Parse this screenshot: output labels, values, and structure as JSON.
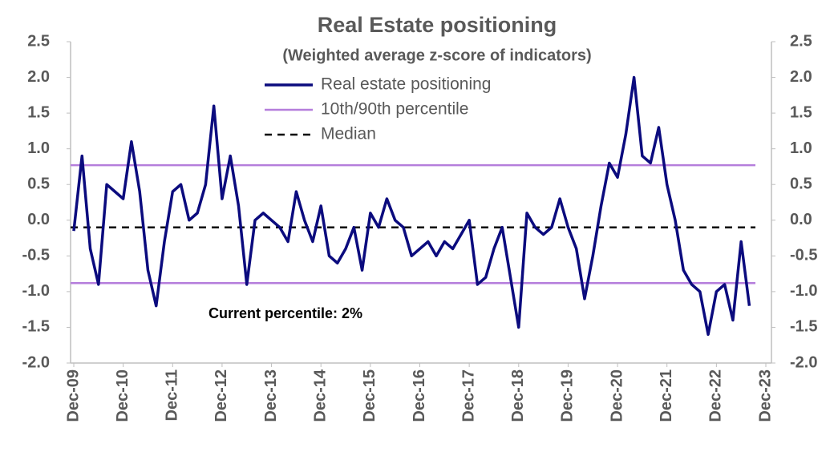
{
  "chart_data": {
    "type": "line",
    "title": "Real Estate positioning",
    "subtitle": "(Weighted average z-score of indicators)",
    "annotation": "Current percentile: 2%",
    "x": [
      "Dec-09",
      "Feb-10",
      "Apr-10",
      "Jun-10",
      "Aug-10",
      "Oct-10",
      "Dec-10",
      "Feb-11",
      "Apr-11",
      "Jun-11",
      "Aug-11",
      "Oct-11",
      "Dec-11",
      "Feb-12",
      "Apr-12",
      "Jun-12",
      "Aug-12",
      "Oct-12",
      "Dec-12",
      "Feb-13",
      "Apr-13",
      "Jun-13",
      "Aug-13",
      "Oct-13",
      "Dec-13",
      "Feb-14",
      "Apr-14",
      "Jun-14",
      "Aug-14",
      "Oct-14",
      "Dec-14",
      "Feb-15",
      "Apr-15",
      "Jun-15",
      "Aug-15",
      "Oct-15",
      "Dec-15",
      "Feb-16",
      "Apr-16",
      "Jun-16",
      "Aug-16",
      "Oct-16",
      "Dec-16",
      "Feb-17",
      "Apr-17",
      "Jun-17",
      "Aug-17",
      "Oct-17",
      "Dec-17",
      "Feb-18",
      "Apr-18",
      "Jun-18",
      "Aug-18",
      "Oct-18",
      "Dec-18",
      "Feb-19",
      "Apr-19",
      "Jun-19",
      "Aug-19",
      "Oct-19",
      "Dec-19",
      "Feb-20",
      "Apr-20",
      "Jun-20",
      "Aug-20",
      "Oct-20",
      "Dec-20",
      "Feb-21",
      "Apr-21",
      "Jun-21",
      "Aug-21",
      "Oct-21",
      "Dec-21",
      "Feb-22",
      "Apr-22",
      "Jun-22",
      "Aug-22",
      "Oct-22",
      "Dec-22",
      "Feb-23",
      "Apr-23",
      "Jun-23",
      "Aug-23"
    ],
    "series": [
      {
        "name": "Real estate positioning",
        "color": "#0b0b7e",
        "values": [
          -0.15,
          0.9,
          -0.4,
          -0.9,
          0.5,
          0.4,
          0.3,
          1.1,
          0.4,
          -0.7,
          -1.2,
          -0.3,
          0.4,
          0.5,
          0.0,
          0.1,
          0.5,
          1.6,
          0.3,
          0.9,
          0.2,
          -0.9,
          0.0,
          0.1,
          0.0,
          -0.1,
          -0.3,
          0.4,
          0.0,
          -0.3,
          0.2,
          -0.5,
          -0.6,
          -0.4,
          -0.1,
          -0.7,
          0.1,
          -0.1,
          0.3,
          0.0,
          -0.1,
          -0.5,
          -0.4,
          -0.3,
          -0.5,
          -0.3,
          -0.4,
          -0.2,
          0.0,
          -0.9,
          -0.8,
          -0.4,
          -0.1,
          -0.8,
          -1.5,
          0.1,
          -0.1,
          -0.2,
          -0.1,
          0.3,
          -0.1,
          -0.4,
          -1.1,
          -0.5,
          0.2,
          0.8,
          0.6,
          1.2,
          2.0,
          0.9,
          0.8,
          1.3,
          0.5,
          0.0,
          -0.7,
          -0.9,
          -1.0,
          -1.6,
          -1.0,
          -0.9,
          -1.4,
          -0.3,
          -1.2
        ]
      }
    ],
    "percentile_lines": {
      "name": "10th/90th percentile",
      "color": "#b57edc",
      "values": [
        -0.88,
        0.77
      ]
    },
    "median_line": {
      "name": "Median",
      "color": "#000000",
      "value": -0.1
    },
    "xlim": [
      "Dec-09",
      "Dec-23"
    ],
    "xticks": [
      "Dec-09",
      "Dec-10",
      "Dec-11",
      "Dec-12",
      "Dec-13",
      "Dec-14",
      "Dec-15",
      "Dec-16",
      "Dec-17",
      "Dec-18",
      "Dec-19",
      "Dec-20",
      "Dec-21",
      "Dec-22",
      "Dec-23"
    ],
    "ylim": [
      -2.0,
      2.5
    ],
    "yticks": [
      {
        "value": -2.0,
        "label": "-2.0"
      },
      {
        "value": -1.5,
        "label": "-1.5"
      },
      {
        "value": -1.0,
        "label": "-1.0"
      },
      {
        "value": -0.5,
        "label": "-0.5"
      },
      {
        "value": 0.0,
        "label": "0.0"
      },
      {
        "value": 0.5,
        "label": "0.5"
      },
      {
        "value": 1.0,
        "label": "1.0"
      },
      {
        "value": 1.5,
        "label": "1.5"
      },
      {
        "value": 2.0,
        "label": "2.0"
      },
      {
        "value": 2.5,
        "label": "2.5"
      }
    ]
  }
}
